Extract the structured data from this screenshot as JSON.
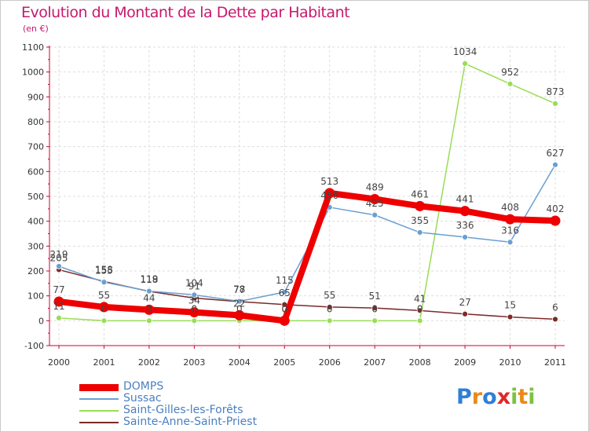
{
  "title": "Evolution du Montant de la Dette par Habitant",
  "subtitle": "(en €)",
  "logo_text": "Proxiti",
  "colors": {
    "title": "#c51a6e",
    "axis": "#cc0033",
    "grid": "#dddddd",
    "tick_text": "#333333",
    "value_text": "#444444"
  },
  "chart_data": {
    "type": "line",
    "title": "Evolution du Montant de la Dette par Habitant",
    "subtitle": "(en €)",
    "xlabel": "",
    "ylabel": "",
    "ylim": [
      -100,
      1100
    ],
    "yticks": [
      -100,
      0,
      100,
      200,
      300,
      400,
      500,
      600,
      700,
      800,
      900,
      1000,
      1100
    ],
    "categories": [
      "2000",
      "2001",
      "2002",
      "2003",
      "2004",
      "2005",
      "2006",
      "2007",
      "2008",
      "2009",
      "2010",
      "2011"
    ],
    "grid": true,
    "legend_position": "bottom-left",
    "series": [
      {
        "name": "DOMPS",
        "color": "#ee0000",
        "values": [
          77,
          55,
          44,
          34,
          22,
          0,
          513,
          489,
          461,
          441,
          408,
          402
        ],
        "labels": [
          "77",
          "55",
          "44",
          "34",
          "22",
          "0",
          "513",
          "489",
          "461",
          "441",
          "408",
          "402"
        ],
        "emphasis": true
      },
      {
        "name": "Sussac",
        "color": "#6a9fd0",
        "values": [
          219,
          155,
          119,
          104,
          78,
          115,
          456,
          425,
          355,
          336,
          316,
          627
        ],
        "labels": [
          "219",
          "155",
          "119",
          "104",
          "78",
          "115",
          "456",
          "425",
          "355",
          "336",
          "316",
          "627"
        ]
      },
      {
        "name": "Saint-Gilles-les-Forêts",
        "color": "#99dd55",
        "values": [
          11,
          0,
          0,
          0,
          0,
          0,
          0,
          0,
          0,
          1034,
          952,
          873
        ],
        "labels": [
          "11",
          "0",
          "0",
          "0",
          "0",
          "0",
          "0",
          "0",
          "0",
          "1034",
          "952",
          "873"
        ]
      },
      {
        "name": "Sainte-Anne-Saint-Priest",
        "color": "#7b2a2a",
        "values": [
          205,
          158,
          118,
          91,
          77,
          65,
          55,
          51,
          41,
          27,
          15,
          6
        ],
        "labels": [
          "205",
          "158",
          "118",
          "91",
          "77",
          "65",
          "55",
          "51",
          "41",
          "27",
          "15",
          "6"
        ]
      }
    ]
  }
}
